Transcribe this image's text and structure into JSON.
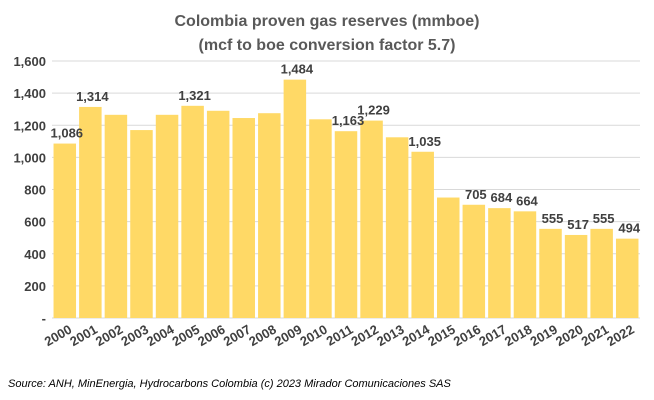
{
  "chart_data": {
    "type": "bar",
    "title": "Colombia proven gas reserves (mmboe)",
    "subtitle": "(mcf to boe conversion factor 5.7)",
    "xlabel": "",
    "ylabel": "",
    "categories": [
      "2000",
      "2001",
      "2002",
      "2003",
      "2004",
      "2005",
      "2006",
      "2007",
      "2008",
      "2009",
      "2010",
      "2011",
      "2012",
      "2013",
      "2014",
      "2015",
      "2016",
      "2017",
      "2018",
      "2019",
      "2020",
      "2021",
      "2022"
    ],
    "values": [
      1086,
      1314,
      1265,
      1170,
      1265,
      1321,
      1290,
      1245,
      1275,
      1484,
      1237,
      1163,
      1229,
      1125,
      1035,
      750,
      705,
      684,
      664,
      555,
      517,
      555,
      494
    ],
    "data_labels": [
      "1,086",
      "1,314",
      "",
      "",
      "",
      "1,321",
      "",
      "",
      "",
      "1,484",
      "",
      "1,163",
      "1,229",
      "",
      "1,035",
      "",
      "705",
      "684",
      "664",
      "555",
      "517",
      "555",
      "494"
    ],
    "ylim": [
      0,
      1600
    ],
    "yticks": [
      0,
      200,
      400,
      600,
      800,
      1000,
      1200,
      1400,
      1600
    ],
    "ytick_labels": [
      "-",
      "200",
      "400",
      "600",
      "800",
      "1,000",
      "1,200",
      "1,400",
      "1,600"
    ],
    "grid": true,
    "legend": "none",
    "bar_color": "#FFD966",
    "grid_color": "#D9D9D9"
  },
  "source": "Source:  ANH, MinEnergia, Hydrocarbons Colombia (c) 2023 Mirador Comunicaciones SAS"
}
